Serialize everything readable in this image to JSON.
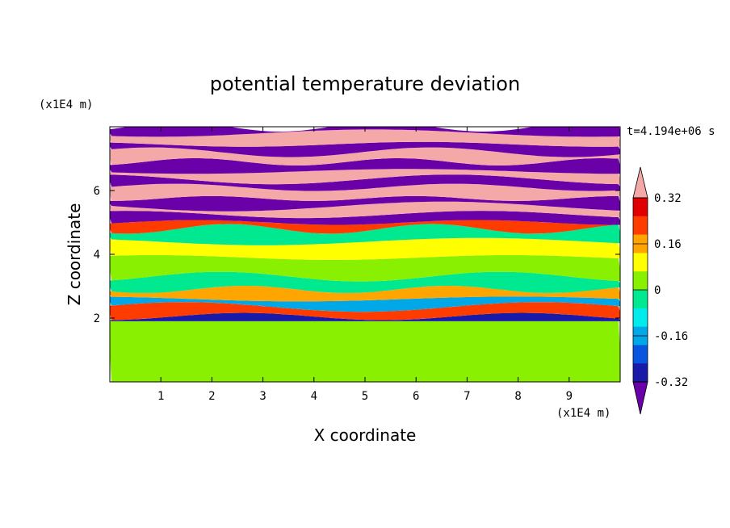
{
  "chart_data": {
    "type": "heatmap",
    "title": "potential temperature deviation",
    "xlabel": "X coordinate",
    "ylabel": "Z coordinate",
    "x_unit": "(x1E4 m)",
    "y_unit": "(x1E4 m)",
    "time_label": "t=4.194e+06 s",
    "xlim": [
      0,
      10
    ],
    "ylim": [
      0,
      8
    ],
    "x_ticks": [
      1,
      2,
      3,
      4,
      5,
      6,
      7,
      8,
      9
    ],
    "y_ticks": [
      2,
      4,
      6
    ],
    "colorbar": {
      "tick_labels": [
        "0.32",
        "0.16",
        "0",
        "-0.16",
        "-0.32"
      ],
      "tick_values": [
        0.32,
        0.16,
        0,
        -0.16,
        -0.32
      ],
      "levels": [
        -0.4,
        -0.32,
        -0.24,
        -0.16,
        -0.08,
        0,
        0.08,
        0.16,
        0.24,
        0.32,
        0.4
      ],
      "colors": [
        "#6a00a8",
        "#1a1aa8",
        "#0a55e0",
        "#00a8e8",
        "#00ecec",
        "#00e890",
        "#88f000",
        "#ffff00",
        "#ffa500",
        "#ff3c00",
        "#e00000",
        "#f5a8a8"
      ],
      "extend": "both"
    },
    "bands": [
      {
        "z0": 0.0,
        "z1": 1.9,
        "value": 0.02
      },
      {
        "z0": 1.9,
        "z1": 2.05,
        "value": -0.36
      },
      {
        "z0": 2.05,
        "z1": 2.35,
        "value": 0.3
      },
      {
        "z0": 2.35,
        "z1": 2.6,
        "value": -0.2
      },
      {
        "z0": 2.6,
        "z1": 2.9,
        "value": 0.2
      },
      {
        "z0": 2.9,
        "z1": 3.3,
        "value": -0.06
      },
      {
        "z0": 3.3,
        "z1": 3.9,
        "value": 0.05
      },
      {
        "z0": 3.9,
        "z1": 4.4,
        "value": 0.1
      },
      {
        "z0": 4.4,
        "z1": 4.8,
        "value": -0.06
      },
      {
        "z0": 4.8,
        "z1": 5.0,
        "value": 0.25
      },
      {
        "z0": 5.0,
        "z1": 5.25,
        "value": -0.45
      },
      {
        "z0": 5.25,
        "z1": 5.5,
        "value": 0.45
      },
      {
        "z0": 5.5,
        "z1": 5.75,
        "value": -0.45
      },
      {
        "z0": 5.75,
        "z1": 6.1,
        "value": 0.45
      },
      {
        "z0": 6.1,
        "z1": 6.35,
        "value": -0.45
      },
      {
        "z0": 6.35,
        "z1": 6.6,
        "value": 0.45
      },
      {
        "z0": 6.6,
        "z1": 6.9,
        "value": -0.45
      },
      {
        "z0": 6.9,
        "z1": 7.2,
        "value": 0.45
      },
      {
        "z0": 7.2,
        "z1": 7.45,
        "value": -0.45
      },
      {
        "z0": 7.45,
        "z1": 7.8,
        "value": 0.45
      },
      {
        "z0": 7.8,
        "z1": 8.0,
        "value": -0.45
      }
    ]
  }
}
